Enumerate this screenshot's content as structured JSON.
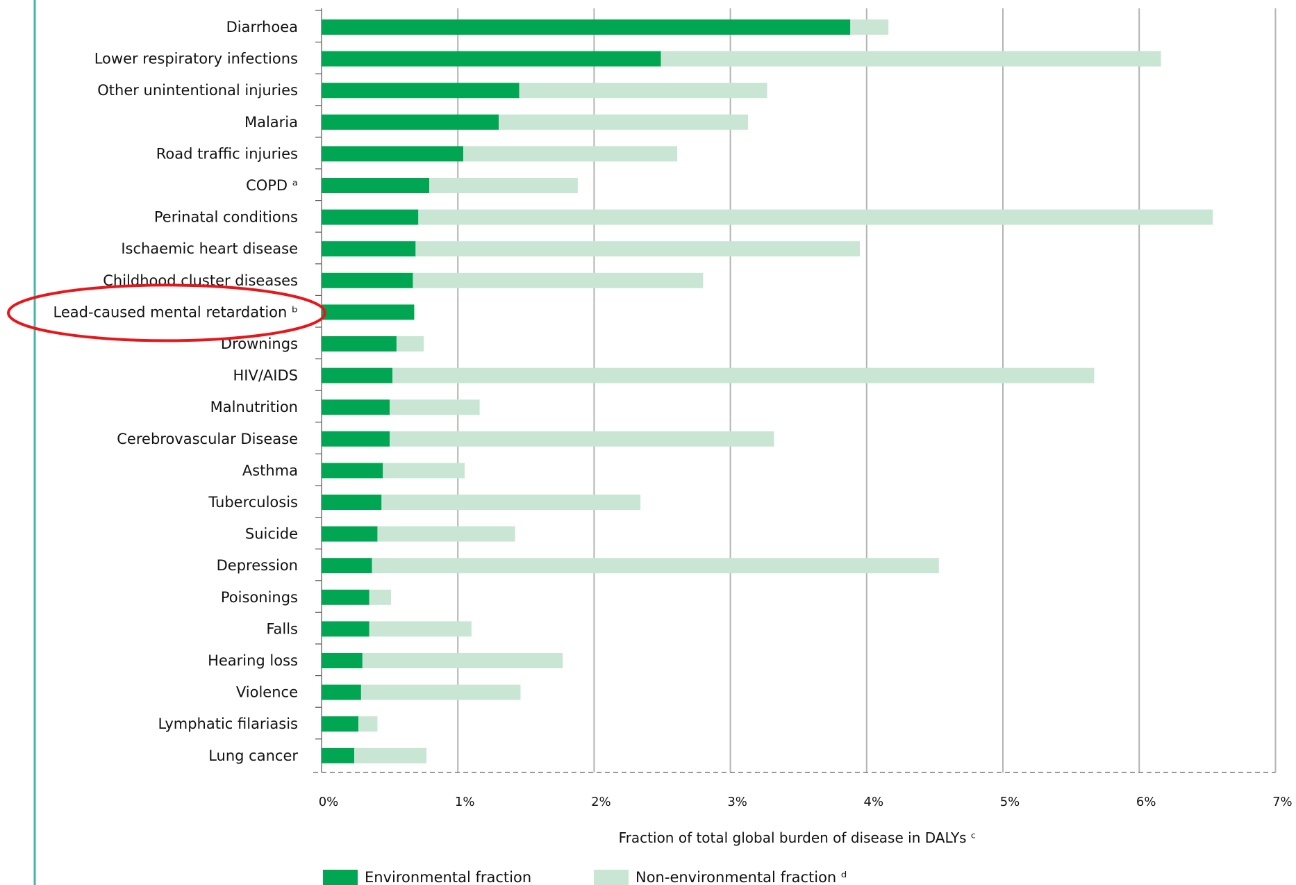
{
  "chart_data": {
    "type": "bar",
    "orientation": "horizontal",
    "stacked": true,
    "categories": [
      "Diarrhoea",
      "Lower respiratory infections",
      "Other unintentional injuries",
      "Malaria",
      "Road traffic injuries",
      "COPD ᵃ",
      "Perinatal conditions",
      "Ischaemic heart disease",
      "Childhood cluster diseases",
      "Lead-caused mental retardation ᵇ",
      "Drownings",
      "HIV/AIDS",
      "Malnutrition",
      "Cerebrovascular Disease",
      "Asthma",
      "Tuberculosis",
      "Suicide",
      "Depression",
      "Poisonings",
      "Falls",
      "Hearing loss",
      "Violence",
      "Lymphatic filariasis",
      "Lung cancer"
    ],
    "series": [
      {
        "name": "Environmental fraction",
        "color": "#00a651",
        "values": [
          3.88,
          2.49,
          1.45,
          1.3,
          1.04,
          0.79,
          0.71,
          0.69,
          0.67,
          0.68,
          0.55,
          0.52,
          0.5,
          0.5,
          0.45,
          0.44,
          0.41,
          0.37,
          0.35,
          0.35,
          0.3,
          0.29,
          0.27,
          0.24
        ]
      },
      {
        "name": "Non-environmental fraction ᵈ",
        "color": "#c8e6d3",
        "values": [
          0.28,
          3.67,
          1.82,
          1.83,
          1.57,
          1.09,
          5.83,
          3.26,
          2.13,
          0.0,
          0.2,
          5.15,
          0.66,
          2.82,
          0.6,
          1.9,
          1.01,
          4.16,
          0.16,
          0.75,
          1.47,
          1.17,
          0.14,
          0.53
        ]
      }
    ],
    "xlim": [
      0,
      7
    ],
    "xticks": [
      "0%",
      "1%",
      "2%",
      "3%",
      "4%",
      "5%",
      "6%",
      "7%"
    ],
    "xlabel": "Fraction of total global burden of disease in DALYs ᶜ",
    "ylabel": "",
    "grid": "vertical",
    "legend_position": "bottom",
    "highlighted_category": "Lead-caused mental retardation ᵇ",
    "highlight_color": "#e8161b",
    "frame_line_color": "#3fb6a8"
  }
}
